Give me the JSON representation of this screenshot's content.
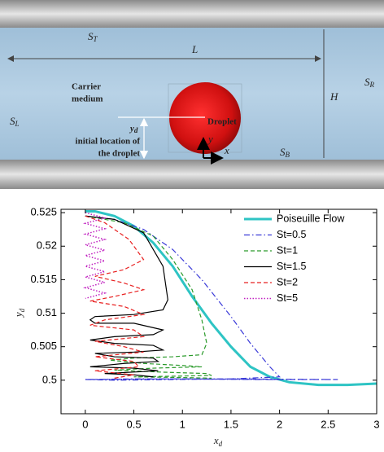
{
  "diagram": {
    "top_wall": {
      "main": "S",
      "sub": "T"
    },
    "length": "L",
    "carrier": [
      "Carrier",
      "medium"
    ],
    "droplet": "Droplet",
    "right": {
      "main": "S",
      "sub": "R"
    },
    "height": "H",
    "left": {
      "main": "S",
      "sub": "L"
    },
    "yd": {
      "main": "y",
      "sub": "d"
    },
    "initial": [
      "initial location of",
      "the droplet"
    ],
    "bottom_wall": {
      "main": "S",
      "sub": "B"
    },
    "axis_y": "y",
    "axis_x": "x"
  },
  "chart_data": {
    "type": "line",
    "xlabel": {
      "main": "x",
      "sub": "d"
    },
    "ylabel": {
      "main": "y",
      "sub": "d"
    },
    "xlim": [
      -0.25,
      3
    ],
    "ylim": [
      0.495,
      0.5255
    ],
    "xticks": [
      0,
      0.5,
      1,
      1.5,
      2,
      2.5,
      3
    ],
    "yticks": [
      0.5,
      0.505,
      0.51,
      0.515,
      0.52,
      0.525
    ],
    "legend": "upper right",
    "series": [
      {
        "name": "Poiseuille Flow",
        "color": "#2ec4c4",
        "dash": "solid",
        "width": 3,
        "x": [
          0,
          0.1,
          0.3,
          0.5,
          0.7,
          0.9,
          1.1,
          1.3,
          1.5,
          1.7,
          1.9,
          2.1,
          2.4,
          2.7,
          3
        ],
        "values": [
          0.5252,
          0.5252,
          0.5245,
          0.523,
          0.5205,
          0.517,
          0.5125,
          0.5085,
          0.505,
          0.502,
          0.5005,
          0.4997,
          0.4993,
          0.4993,
          0.4995
        ]
      },
      {
        "name": "St=0.5",
        "color": "#3a3ad8",
        "dash": "dashdot",
        "width": 1.2,
        "x": [
          0,
          0.3,
          0.6,
          0.9,
          1.2,
          1.5,
          1.7,
          1.9,
          2.0,
          1.5,
          0.5,
          0,
          0.8,
          1.8,
          2.6,
          1.5,
          0.3,
          0,
          1.0,
          2.0
        ],
        "values": [
          0.5245,
          0.524,
          0.5225,
          0.5195,
          0.515,
          0.5095,
          0.5055,
          0.502,
          0.5005,
          0.5002,
          0.5002,
          0.5001,
          0.5002,
          0.5001,
          0.5001,
          0.5002,
          0.5,
          0.5001,
          0.5002,
          0.5001
        ]
      },
      {
        "name": "St=1",
        "color": "#2a9a2a",
        "dash": "dashed",
        "width": 1.2,
        "x": [
          0,
          0.4,
          0.7,
          0.9,
          1.1,
          1.2,
          1.25,
          1.2,
          0.9,
          0.5,
          0.25,
          0.6,
          1.0,
          1.2,
          0.7,
          0.3,
          0.8,
          1.25,
          1.3,
          0.5,
          1.0,
          1.3
        ],
        "values": [
          0.5245,
          0.5235,
          0.5215,
          0.518,
          0.5135,
          0.509,
          0.5055,
          0.5038,
          0.5035,
          0.5033,
          0.503,
          0.5025,
          0.5022,
          0.502,
          0.5018,
          0.5015,
          0.5012,
          0.501,
          0.5007,
          0.5005,
          0.5004,
          0.5003
        ]
      },
      {
        "name": "St=1.5",
        "color": "#000000",
        "dash": "solid",
        "width": 1.2,
        "x": [
          0,
          0.3,
          0.6,
          0.8,
          0.85,
          0.8,
          0.5,
          0.1,
          0.05,
          0.1,
          0.5,
          0.8,
          0.7,
          0.3,
          0.05,
          0.3,
          0.7,
          0.8,
          0.5,
          0.1,
          0.3,
          0.7,
          0.75,
          0.4,
          0.05,
          0.5,
          0.75,
          0.2,
          0.5,
          0.7
        ],
        "values": [
          0.5245,
          0.524,
          0.522,
          0.517,
          0.512,
          0.5105,
          0.5098,
          0.5095,
          0.509,
          0.5085,
          0.5085,
          0.5075,
          0.5068,
          0.5065,
          0.506,
          0.5055,
          0.5052,
          0.5045,
          0.5042,
          0.504,
          0.5035,
          0.5033,
          0.5028,
          0.5025,
          0.502,
          0.5018,
          0.5014,
          0.501,
          0.5008,
          0.5005
        ]
      },
      {
        "name": "St=2",
        "color": "#e82020",
        "dash": "dashed",
        "width": 1.2,
        "x": [
          0,
          0.2,
          0.45,
          0.6,
          0.4,
          0.1,
          0.4,
          0.6,
          0.3,
          0.05,
          0.4,
          0.6,
          0.2,
          0.05,
          0.5,
          0.6,
          0.1,
          0.4,
          0.6,
          0.1,
          0.5,
          0.55,
          0.1,
          0.5,
          0.3
        ],
        "values": [
          0.5245,
          0.5235,
          0.521,
          0.518,
          0.5165,
          0.5155,
          0.5145,
          0.5135,
          0.5125,
          0.5118,
          0.511,
          0.5098,
          0.509,
          0.5082,
          0.5075,
          0.5065,
          0.5058,
          0.505,
          0.5042,
          0.5035,
          0.5028,
          0.502,
          0.5014,
          0.5008,
          0.5003
        ]
      },
      {
        "name": "St=5",
        "color": "#c020c0",
        "dash": "dotted",
        "width": 1.5,
        "x": [
          0,
          0.2,
          0,
          0.2,
          0,
          0.2,
          0,
          0.2,
          0,
          0.2,
          0,
          0.2,
          0,
          0.2,
          0,
          0.2,
          0
        ],
        "values": [
          0.525,
          0.5242,
          0.5234,
          0.5226,
          0.5218,
          0.521,
          0.5202,
          0.5194,
          0.5186,
          0.5178,
          0.517,
          0.5162,
          0.5154,
          0.5146,
          0.5138,
          0.513,
          0.5122
        ]
      }
    ]
  }
}
